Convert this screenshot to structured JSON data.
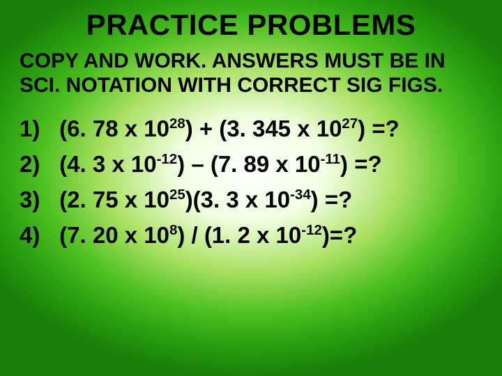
{
  "title": "PRACTICE PROBLEMS",
  "instructions": "COPY AND WORK. ANSWERS MUST BE IN SCI. NOTATION WITH CORRECT SIG FIGS.",
  "problems": [
    {
      "n": "1)",
      "a": "(6. 78 x 10",
      "e1": "28",
      "b": ") + (3. 345 x 10",
      "e2": "27",
      "c": ") =?"
    },
    {
      "n": "2)",
      "a": "(4. 3 x 10",
      "e1": "-12",
      "b": ") – (7. 89 x 10",
      "e2": "-11",
      "c": ") =?"
    },
    {
      "n": "3)",
      "a": "(2. 75 x 10",
      "e1": "25",
      "b": ")(3. 3 x 10",
      "e2": "-34",
      "c": ") =?"
    },
    {
      "n": "4)",
      "a": "(7. 20 x 10",
      "e1": "8",
      "b": ") / (1. 2 x 10",
      "e2": "-12",
      "c": ")=?"
    }
  ],
  "colors": {
    "text": "#000000",
    "bg_center": "#ffffff",
    "bg_mid": "#a8e060",
    "bg_edge": "#188008"
  },
  "fontsizes": {
    "title": 42,
    "instructions": 30,
    "problems": 33
  }
}
